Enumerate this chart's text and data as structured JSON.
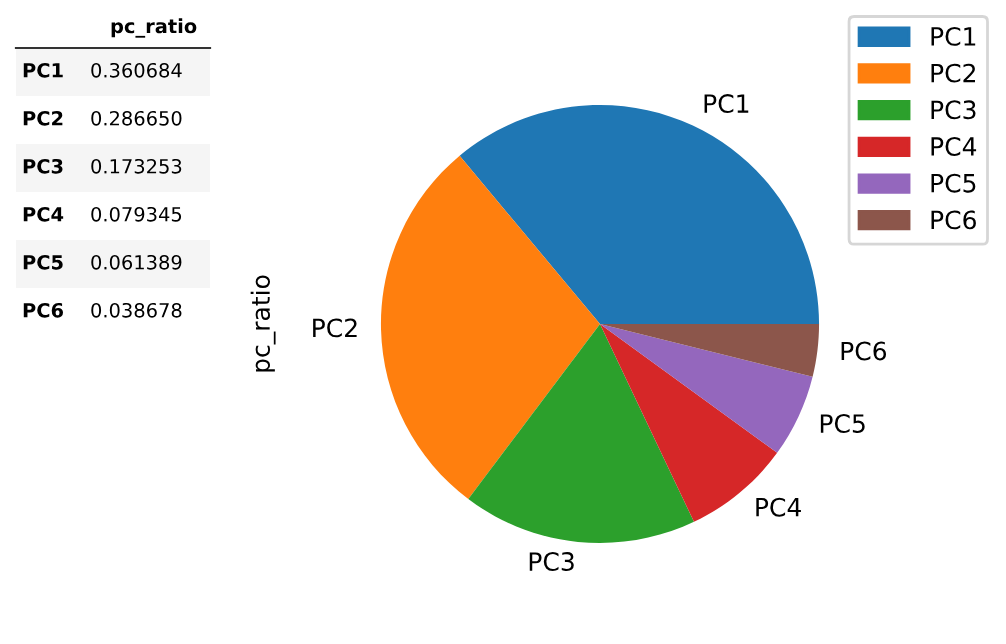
{
  "chart_data": {
    "type": "pie",
    "ylabel": "pc_ratio",
    "categories": [
      "PC1",
      "PC2",
      "PC3",
      "PC4",
      "PC5",
      "PC6"
    ],
    "values": [
      0.360684,
      0.28665,
      0.173253,
      0.079345,
      0.061389,
      0.038678
    ],
    "annotations": [
      "0.360684",
      "0.286650",
      "0.173253",
      "0.079345",
      "0.061389",
      "0.038678"
    ],
    "colors": [
      "#1f77b4",
      "#ff7f0e",
      "#2ca02c",
      "#d62728",
      "#9467bd",
      "#8c564b"
    ],
    "legend": "top right"
  }
}
